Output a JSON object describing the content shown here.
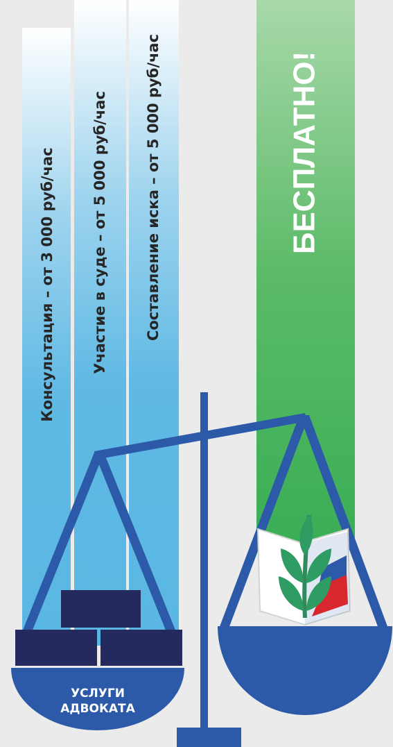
{
  "columns": [
    "Консультация – от 3 000 руб/час",
    "Участие в суде – от 5 000 руб/час",
    "Составление иска – от 5 000 руб/час"
  ],
  "free_label": "БЕСПЛАТНО!",
  "pan_label": [
    "УСЛУГИ",
    "АДВОКАТА"
  ]
}
